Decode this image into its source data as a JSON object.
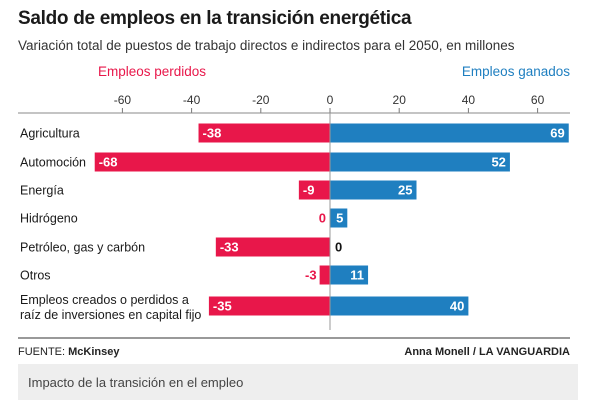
{
  "chart_data": {
    "type": "bar",
    "title": "Saldo de empleos en la transición energética",
    "subtitle": "Variación total de puestos de trabajo directos e indirectos para el 2050, en millones",
    "legend_left": "Empleos perdidos",
    "legend_right": "Empleos ganados",
    "categories": [
      [
        "Agricultura"
      ],
      [
        "Automoción"
      ],
      [
        "Energía"
      ],
      [
        "Hidrógeno"
      ],
      [
        "Petróleo, gas y carbón"
      ],
      [
        "Otros"
      ],
      [
        "Empleos creados o perdidos a",
        "raíz de inversiones en capital fijo"
      ]
    ],
    "series": [
      {
        "name": "Empleos perdidos",
        "values": [
          -38,
          -68,
          -9,
          0,
          -33,
          -3,
          -35
        ],
        "color": "#e8174a"
      },
      {
        "name": "Empleos ganados",
        "values": [
          69,
          52,
          25,
          5,
          0,
          11,
          40
        ],
        "color": "#1f7fc0"
      }
    ],
    "xticks": [
      "-60",
      "-40",
      "-20",
      "0",
      "20",
      "40",
      "60"
    ],
    "xlim": [
      -72,
      72
    ],
    "grid": false
  },
  "footer": {
    "source_label": "FUENTE:",
    "source_name": "McKinsey",
    "credit": "Anna Monell / LA VANGUARDIA"
  },
  "caption": "Impacto de la transición en el empleo"
}
